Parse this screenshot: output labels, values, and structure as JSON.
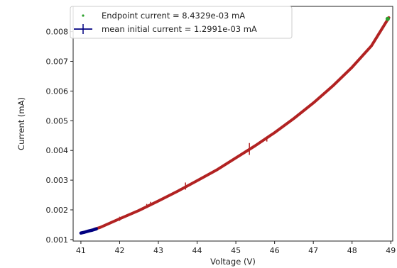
{
  "chart_data": {
    "type": "line",
    "xlabel": "Voltage (V)",
    "ylabel": "Current (mA)",
    "xlim": [
      40.8,
      49.05
    ],
    "ylim": [
      0.00095,
      0.00885
    ],
    "xticks": [
      41,
      42,
      43,
      44,
      45,
      46,
      47,
      48,
      49
    ],
    "xtick_labels": [
      "41",
      "42",
      "43",
      "44",
      "45",
      "46",
      "47",
      "48",
      "49"
    ],
    "yticks": [
      0.001,
      0.002,
      0.003,
      0.004,
      0.005,
      0.006,
      0.007,
      0.008
    ],
    "ytick_labels": [
      "0.001",
      "0.002",
      "0.003",
      "0.004",
      "0.005",
      "0.006",
      "0.007",
      "0.008"
    ],
    "grid": false,
    "legend_position": "top-left",
    "series": [
      {
        "name": "Endpoint current = 8.4329e-03 mA",
        "style": "scatter",
        "color": "#2ca02c",
        "x": [
          48.92
        ],
        "y": [
          0.00843
        ]
      },
      {
        "name": "mean initial current = 1.2991e-03 mA",
        "style": "errorbar",
        "color": "#000080",
        "x": [
          41.0,
          41.1,
          41.2,
          41.3,
          41.4
        ],
        "y": [
          0.00122,
          0.00125,
          0.00129,
          0.00132,
          0.00136
        ]
      },
      {
        "name": "",
        "style": "line",
        "color": "#b22222",
        "x": [
          41.35,
          41.5,
          42.0,
          42.5,
          43.0,
          43.5,
          44.0,
          44.5,
          45.0,
          45.5,
          46.0,
          46.5,
          47.0,
          47.5,
          48.0,
          48.5,
          48.95
        ],
        "y": [
          0.00135,
          0.00141,
          0.0017,
          0.00198,
          0.0023,
          0.00263,
          0.00298,
          0.00334,
          0.00375,
          0.00416,
          0.0046,
          0.00508,
          0.0056,
          0.00617,
          0.0068,
          0.00752,
          0.00847
        ]
      }
    ],
    "error_bars": {
      "color": "#b22222",
      "x": [
        42.0,
        42.7,
        42.8,
        43.7,
        45.35,
        45.8
      ],
      "y": [
        0.0017,
        0.00213,
        0.0022,
        0.0028,
        0.00405,
        0.00438
      ],
      "yerr": [
        7e-05,
        7e-05,
        7e-05,
        0.00012,
        0.0002,
        8e-05
      ]
    }
  }
}
